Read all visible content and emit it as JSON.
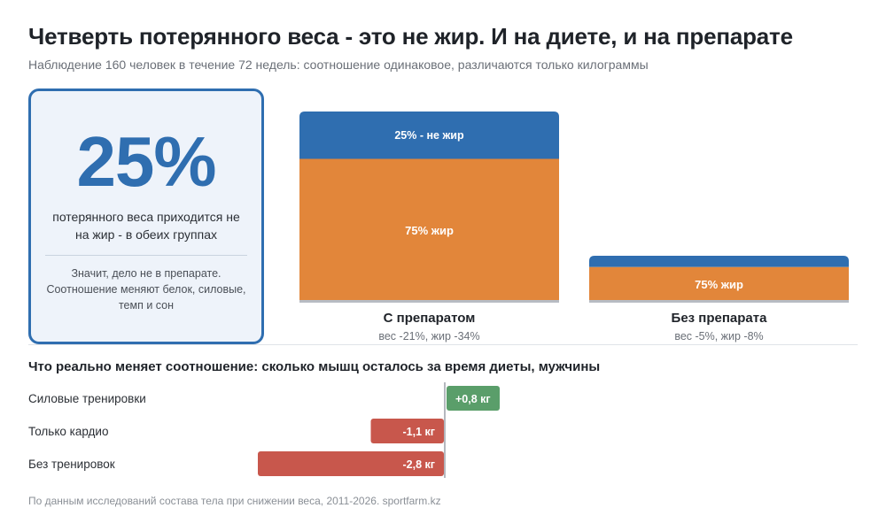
{
  "header": {
    "title": "Четверть потерянного веса - это не жир. И на диете, и на препарате",
    "subtitle": "Наблюдение 160 человек в течение 72 недель: соотношение одинаковое, различаются только килограммы"
  },
  "card": {
    "big_value": "25%",
    "description": "потерянного веса приходится не на жир - в обеих группах",
    "note": "Значит, дело не в препарате. Соотношение меняют белок, силовые, темп и сон"
  },
  "chart_data": [
    {
      "type": "bar",
      "stacked": true,
      "categories": [
        "С препаратом",
        "Без препарата"
      ],
      "category_notes": [
        "вес -21%, жир -34%",
        "вес -5%, жир -8%"
      ],
      "weight_loss_percent": [
        21,
        5
      ],
      "series": [
        {
          "name": "не жир",
          "share_percent": 25,
          "labels": [
            "25% - не жир",
            ""
          ],
          "color": "#2f6eb0"
        },
        {
          "name": "жир",
          "share_percent": 75,
          "labels": [
            "75% жир",
            "75% жир"
          ],
          "color": "#e2863a"
        }
      ]
    },
    {
      "type": "bar",
      "orientation": "horizontal",
      "title": "Что реально меняет соотношение: сколько мышц осталось за время диеты, мужчины",
      "categories": [
        "Силовые тренировки",
        "Только кардио",
        "Без тренировок"
      ],
      "values": [
        0.8,
        -1.1,
        -2.8
      ],
      "value_labels": [
        "+0,8 кг",
        "-1,1 кг",
        "-2,8 кг"
      ],
      "unit": "кг",
      "colors": {
        "positive": "#5a9e6a",
        "negative": "#c8574c"
      }
    }
  ],
  "footer": {
    "source": "По данным исследований состава тела при снижении веса, 2011-2026. sportfarm.kz"
  }
}
